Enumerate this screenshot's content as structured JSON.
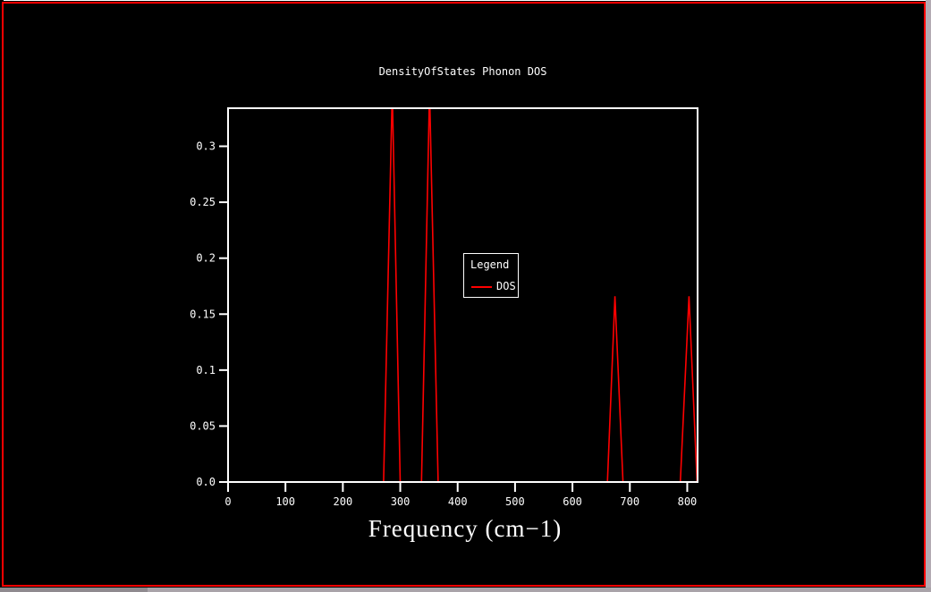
{
  "window": {
    "background_color": "#000000",
    "border_color": "#ff0000",
    "top_hairline_color": "#ffffff",
    "right_strip_color": "#b3abb3",
    "bottom_strip_left_color": "#8f8a8f",
    "bottom_strip_right_color": "#a9a3a9"
  },
  "chart_data": {
    "type": "line",
    "title": "DensityOfStates Phonon DOS",
    "xlabel": "Frequency (cm−1)",
    "ylabel": "",
    "xlim": [
      0,
      818
    ],
    "ylim": [
      0,
      0.334
    ],
    "grid": false,
    "axis_color": "#ffffff",
    "text_color": "#ffffff",
    "x_ticks": [
      {
        "value": 0,
        "label": "0"
      },
      {
        "value": 100,
        "label": "100"
      },
      {
        "value": 200,
        "label": "200"
      },
      {
        "value": 300,
        "label": "300"
      },
      {
        "value": 400,
        "label": "400"
      },
      {
        "value": 500,
        "label": "500"
      },
      {
        "value": 600,
        "label": "600"
      },
      {
        "value": 700,
        "label": "700"
      },
      {
        "value": 800,
        "label": "800"
      }
    ],
    "y_ticks": [
      {
        "value": 0.0,
        "label": "0.0"
      },
      {
        "value": 0.05,
        "label": "0.05"
      },
      {
        "value": 0.1,
        "label": "0.1"
      },
      {
        "value": 0.15,
        "label": "0.15"
      },
      {
        "value": 0.2,
        "label": "0.2"
      },
      {
        "value": 0.25,
        "label": "0.25"
      },
      {
        "value": 0.3,
        "label": "0.3"
      }
    ],
    "legend": {
      "title": "Legend",
      "position": "center-of-plot",
      "entries": [
        {
          "label": "DOS",
          "color": "#ff0000"
        }
      ]
    },
    "series": [
      {
        "name": "DOS",
        "color": "#ff0000",
        "points": [
          [
            0,
            0
          ],
          [
            271,
            0
          ],
          [
            286,
            0.35
          ],
          [
            300,
            0
          ],
          [
            337,
            0
          ],
          [
            351,
            0.35
          ],
          [
            366,
            0
          ],
          [
            661,
            0
          ],
          [
            674,
            0.166
          ],
          [
            688,
            0
          ],
          [
            788,
            0
          ],
          [
            803,
            0.166
          ],
          [
            817,
            0
          ]
        ],
        "peaks_note": "peaks near 286 and 351 cm-1 are clipped at top of axis range; peaks near 674 and 803 cm-1 reach ~0.166"
      }
    ]
  }
}
